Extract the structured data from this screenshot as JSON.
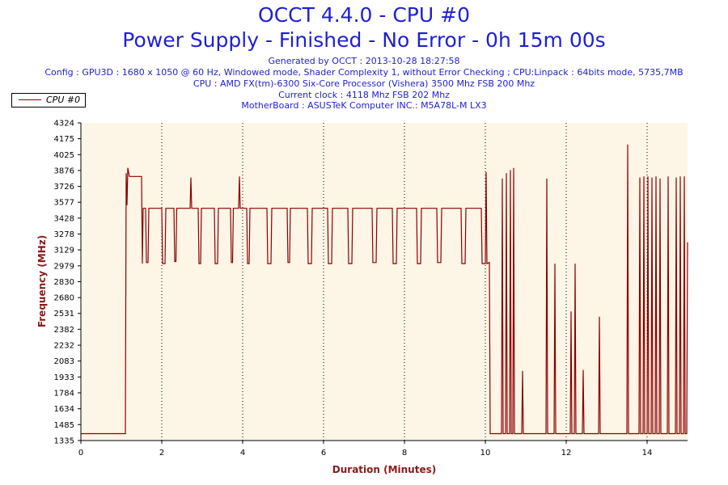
{
  "header": {
    "title_line1": "OCCT 4.4.0 - CPU #0",
    "title_line2": "Power Supply - Finished - No Error - 0h 15m 00s",
    "info": [
      "Generated by OCCT : 2013-10-28 18:27:58",
      "Config : GPU3D : 1680 x 1050 @ 60 Hz, Windowed mode, Shader Complexity 1, without Error Checking ; CPU:Linpack : 64bits mode, 5735,7MB",
      "CPU : AMD FX(tm)-6300 Six-Core Processor (Vishera) 3500 Mhz FSB 200 Mhz",
      "Current clock : 4118 Mhz FSB 202 Mhz",
      "MotherBoard : ASUSTeK Computer INC.: M5A78L-M LX3"
    ]
  },
  "legend": {
    "label": "CPU #0"
  },
  "colors": {
    "line": "#8b0000",
    "plot_bg": "#fdf5e6",
    "title": "#1f1fd6",
    "axis_title": "#8b1a1a"
  },
  "chart_data": {
    "type": "line",
    "xlabel": "Duration (Minutes)",
    "ylabel": "Frequency (MHz)",
    "xlim": [
      0,
      15
    ],
    "ylim": [
      1335,
      4324
    ],
    "x_ticks": [
      "0",
      "2",
      "4",
      "6",
      "8",
      "10",
      "12",
      "14"
    ],
    "y_ticks": [
      "1335",
      "1485",
      "1634",
      "1784",
      "1933",
      "2083",
      "2232",
      "2382",
      "2531",
      "2680",
      "2830",
      "2979",
      "3129",
      "3278",
      "3428",
      "3577",
      "3726",
      "3876",
      "4025",
      "4175",
      "4324"
    ],
    "grid": "vertical dotted",
    "legend_position": "top-left",
    "series": [
      {
        "name": "CPU #0",
        "points": [
          [
            0,
            1400
          ],
          [
            1.1,
            1400
          ],
          [
            1.12,
            3850
          ],
          [
            1.14,
            3550
          ],
          [
            1.16,
            3900
          ],
          [
            1.2,
            3820
          ],
          [
            1.5,
            3820
          ],
          [
            1.52,
            3000
          ],
          [
            1.54,
            3520
          ],
          [
            1.6,
            3520
          ],
          [
            1.62,
            3010
          ],
          [
            1.66,
            3010
          ],
          [
            1.68,
            3520
          ],
          [
            2.0,
            3520
          ],
          [
            2.02,
            3000
          ],
          [
            2.08,
            3000
          ],
          [
            2.1,
            3520
          ],
          [
            2.3,
            3520
          ],
          [
            2.32,
            3020
          ],
          [
            2.35,
            3020
          ],
          [
            2.37,
            3520
          ],
          [
            2.7,
            3520
          ],
          [
            2.72,
            3810
          ],
          [
            2.74,
            3520
          ],
          [
            2.9,
            3520
          ],
          [
            2.92,
            3000
          ],
          [
            2.96,
            3000
          ],
          [
            2.98,
            3520
          ],
          [
            3.3,
            3520
          ],
          [
            3.32,
            3000
          ],
          [
            3.38,
            3000
          ],
          [
            3.4,
            3520
          ],
          [
            3.7,
            3520
          ],
          [
            3.72,
            3010
          ],
          [
            3.75,
            3010
          ],
          [
            3.77,
            3520
          ],
          [
            3.9,
            3520
          ],
          [
            3.92,
            3820
          ],
          [
            3.94,
            3520
          ],
          [
            4.1,
            3520
          ],
          [
            4.12,
            3000
          ],
          [
            4.16,
            3000
          ],
          [
            4.18,
            3520
          ],
          [
            4.6,
            3520
          ],
          [
            4.62,
            3000
          ],
          [
            4.7,
            3000
          ],
          [
            4.72,
            3520
          ],
          [
            5.1,
            3520
          ],
          [
            5.12,
            3010
          ],
          [
            5.16,
            3010
          ],
          [
            5.18,
            3520
          ],
          [
            5.6,
            3520
          ],
          [
            5.62,
            3000
          ],
          [
            5.7,
            3000
          ],
          [
            5.72,
            3520
          ],
          [
            6.1,
            3520
          ],
          [
            6.12,
            3000
          ],
          [
            6.2,
            3000
          ],
          [
            6.22,
            3520
          ],
          [
            6.6,
            3520
          ],
          [
            6.62,
            3000
          ],
          [
            6.7,
            3000
          ],
          [
            6.72,
            3520
          ],
          [
            7.2,
            3520
          ],
          [
            7.22,
            3010
          ],
          [
            7.3,
            3010
          ],
          [
            7.32,
            3520
          ],
          [
            7.7,
            3520
          ],
          [
            7.72,
            3000
          ],
          [
            7.8,
            3000
          ],
          [
            7.82,
            3520
          ],
          [
            8.3,
            3520
          ],
          [
            8.32,
            3000
          ],
          [
            8.4,
            3000
          ],
          [
            8.42,
            3520
          ],
          [
            8.8,
            3520
          ],
          [
            8.82,
            3010
          ],
          [
            8.9,
            3010
          ],
          [
            8.92,
            3520
          ],
          [
            9.4,
            3520
          ],
          [
            9.42,
            3000
          ],
          [
            9.5,
            3000
          ],
          [
            9.52,
            3520
          ],
          [
            9.9,
            3520
          ],
          [
            9.92,
            3000
          ],
          [
            10.0,
            3000
          ],
          [
            10.02,
            3860
          ],
          [
            10.04,
            3000
          ],
          [
            10.1,
            3010
          ],
          [
            10.12,
            1400
          ],
          [
            10.4,
            1400
          ],
          [
            10.42,
            3800
          ],
          [
            10.44,
            1400
          ],
          [
            10.5,
            1400
          ],
          [
            10.52,
            3850
          ],
          [
            10.54,
            1400
          ],
          [
            10.6,
            1400
          ],
          [
            10.62,
            3880
          ],
          [
            10.64,
            1400
          ],
          [
            10.68,
            1400
          ],
          [
            10.7,
            3900
          ],
          [
            10.72,
            1400
          ],
          [
            10.9,
            1400
          ],
          [
            10.92,
            1990
          ],
          [
            10.94,
            1400
          ],
          [
            11.5,
            1400
          ],
          [
            11.52,
            3800
          ],
          [
            11.54,
            1400
          ],
          [
            11.7,
            1400
          ],
          [
            11.72,
            3000
          ],
          [
            11.74,
            1400
          ],
          [
            12.1,
            1400
          ],
          [
            12.12,
            2550
          ],
          [
            12.14,
            1400
          ],
          [
            12.2,
            1400
          ],
          [
            12.22,
            3000
          ],
          [
            12.24,
            1400
          ],
          [
            12.4,
            1400
          ],
          [
            12.42,
            2000
          ],
          [
            12.44,
            1400
          ],
          [
            12.8,
            1400
          ],
          [
            12.82,
            2500
          ],
          [
            12.84,
            1400
          ],
          [
            13.5,
            1400
          ],
          [
            13.52,
            4120
          ],
          [
            13.54,
            1400
          ],
          [
            13.8,
            1400
          ],
          [
            13.82,
            3810
          ],
          [
            13.84,
            1400
          ],
          [
            13.9,
            1400
          ],
          [
            13.92,
            3820
          ],
          [
            13.94,
            1400
          ],
          [
            14.0,
            1400
          ],
          [
            14.02,
            3820
          ],
          [
            14.04,
            1400
          ],
          [
            14.1,
            1400
          ],
          [
            14.12,
            3810
          ],
          [
            14.14,
            1400
          ],
          [
            14.2,
            1400
          ],
          [
            14.22,
            3820
          ],
          [
            14.24,
            1400
          ],
          [
            14.3,
            1400
          ],
          [
            14.32,
            3800
          ],
          [
            14.34,
            1400
          ],
          [
            14.5,
            1400
          ],
          [
            14.52,
            3820
          ],
          [
            14.54,
            1400
          ],
          [
            14.7,
            1400
          ],
          [
            14.72,
            3810
          ],
          [
            14.74,
            1400
          ],
          [
            14.8,
            1400
          ],
          [
            14.82,
            3820
          ],
          [
            14.84,
            1400
          ],
          [
            14.9,
            1400
          ],
          [
            14.92,
            3820
          ],
          [
            14.94,
            1400
          ],
          [
            14.98,
            1400
          ],
          [
            15.0,
            3200
          ]
        ]
      }
    ]
  }
}
